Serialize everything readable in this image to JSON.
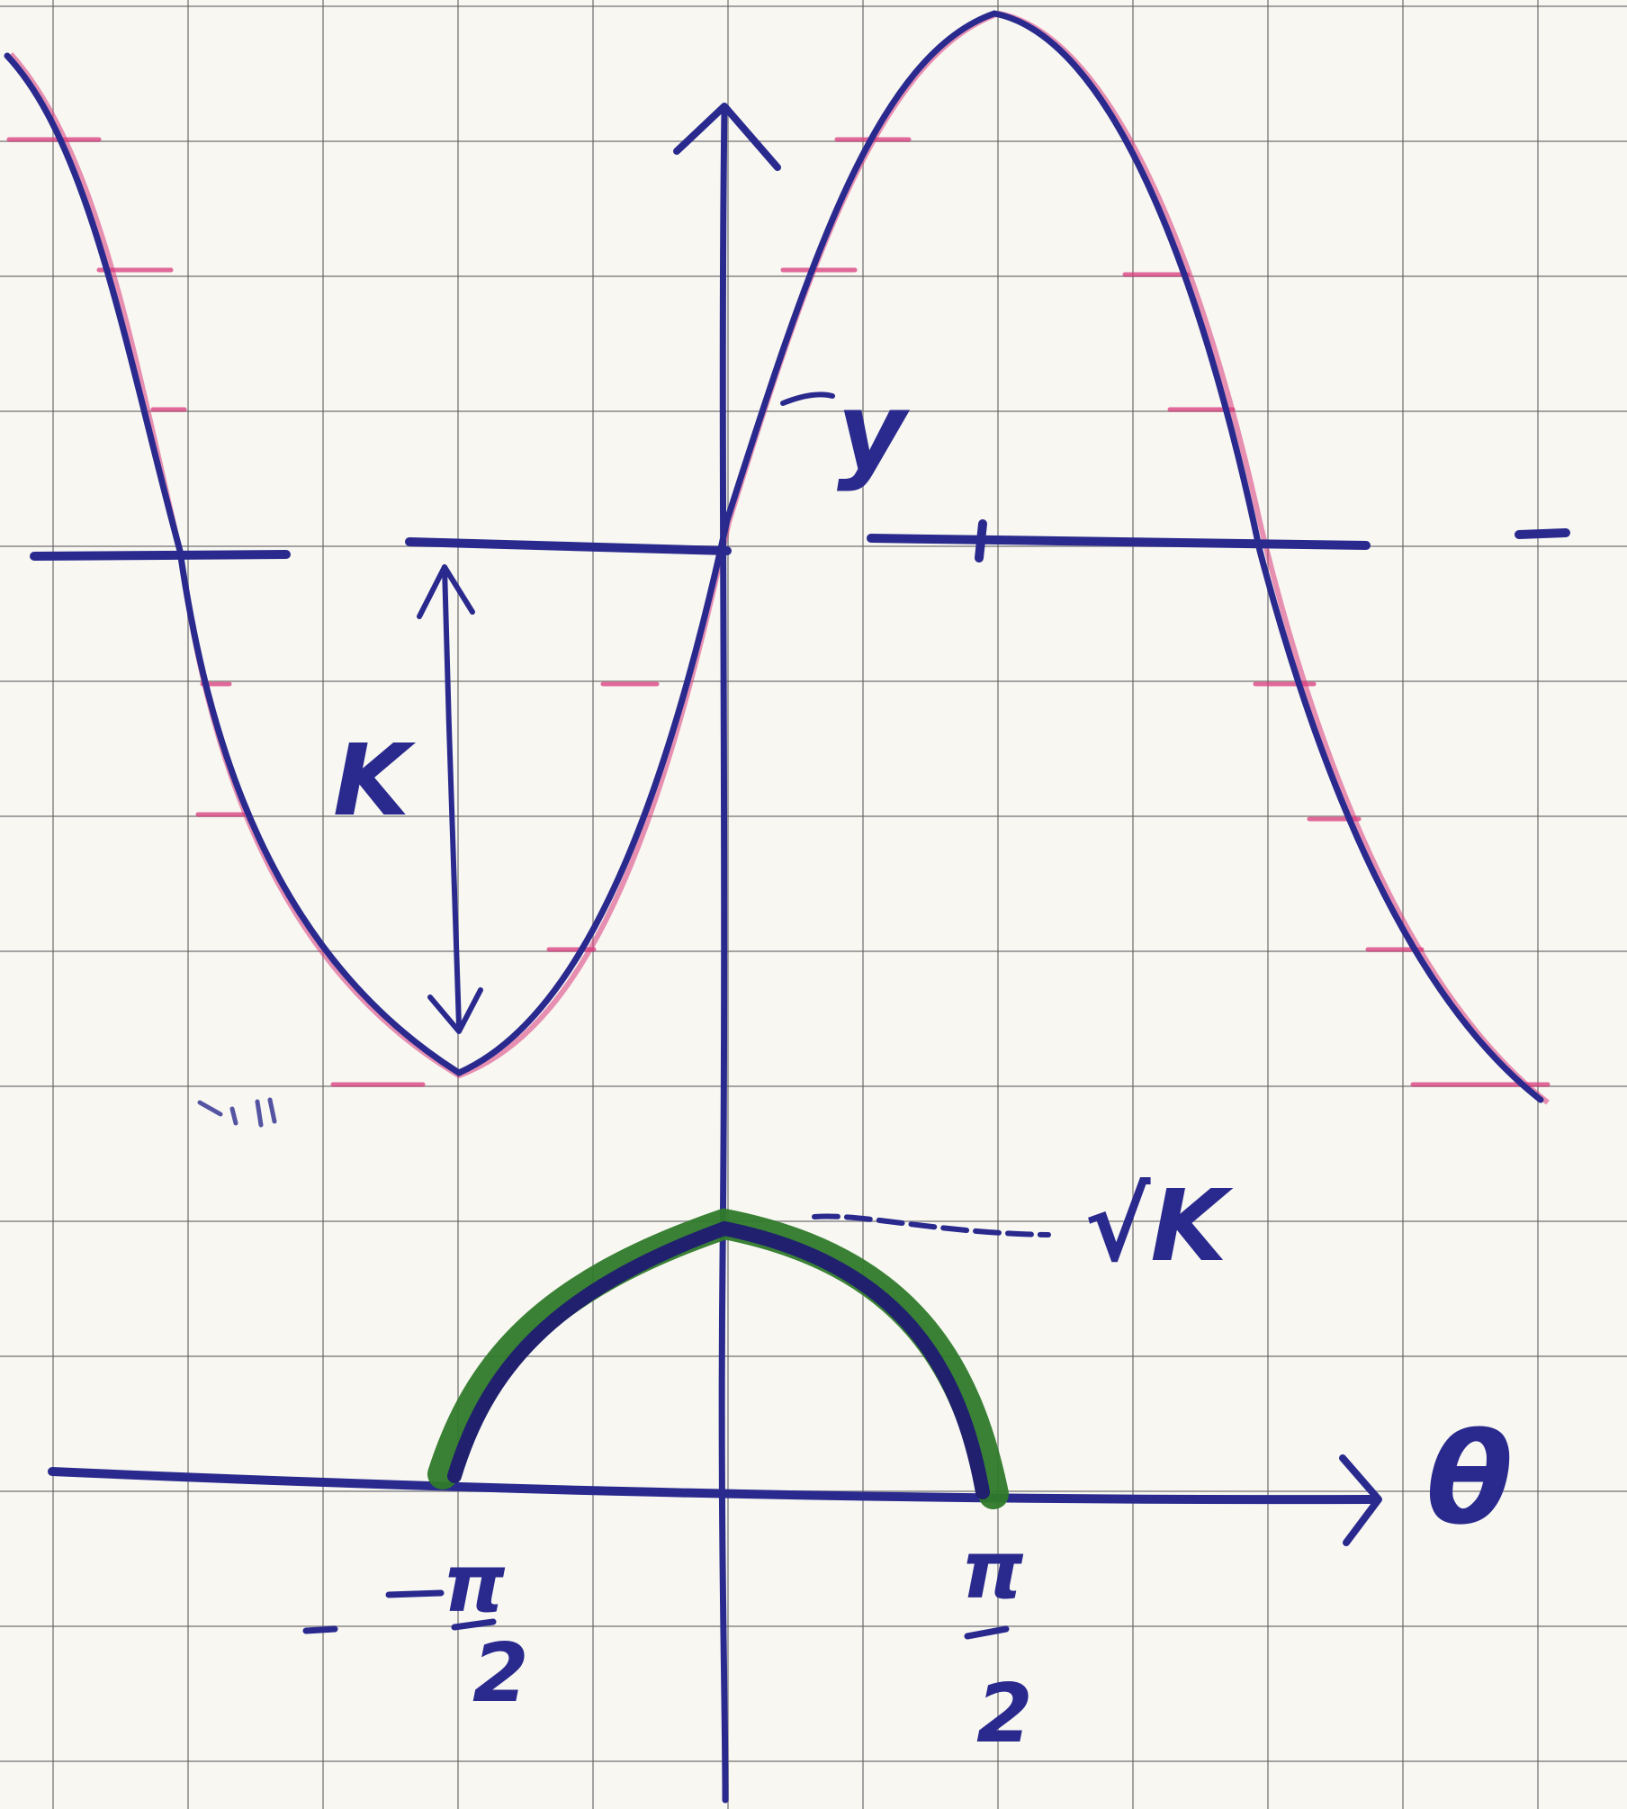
{
  "labels": {
    "y_axis": "y",
    "x_axis": "θ",
    "amplitude": "K",
    "peak": "√K",
    "neg_pi": "π",
    "neg_denominator": "2",
    "pos_pi": "π",
    "pos_denominator": "2"
  },
  "colors": {
    "ink_blue": "#2a2a8e",
    "pencil_red": "#d93a7c",
    "highlight_green": "#2f7a2a",
    "grid": "#5f5f5f",
    "paper": "#f8f7f2"
  }
}
